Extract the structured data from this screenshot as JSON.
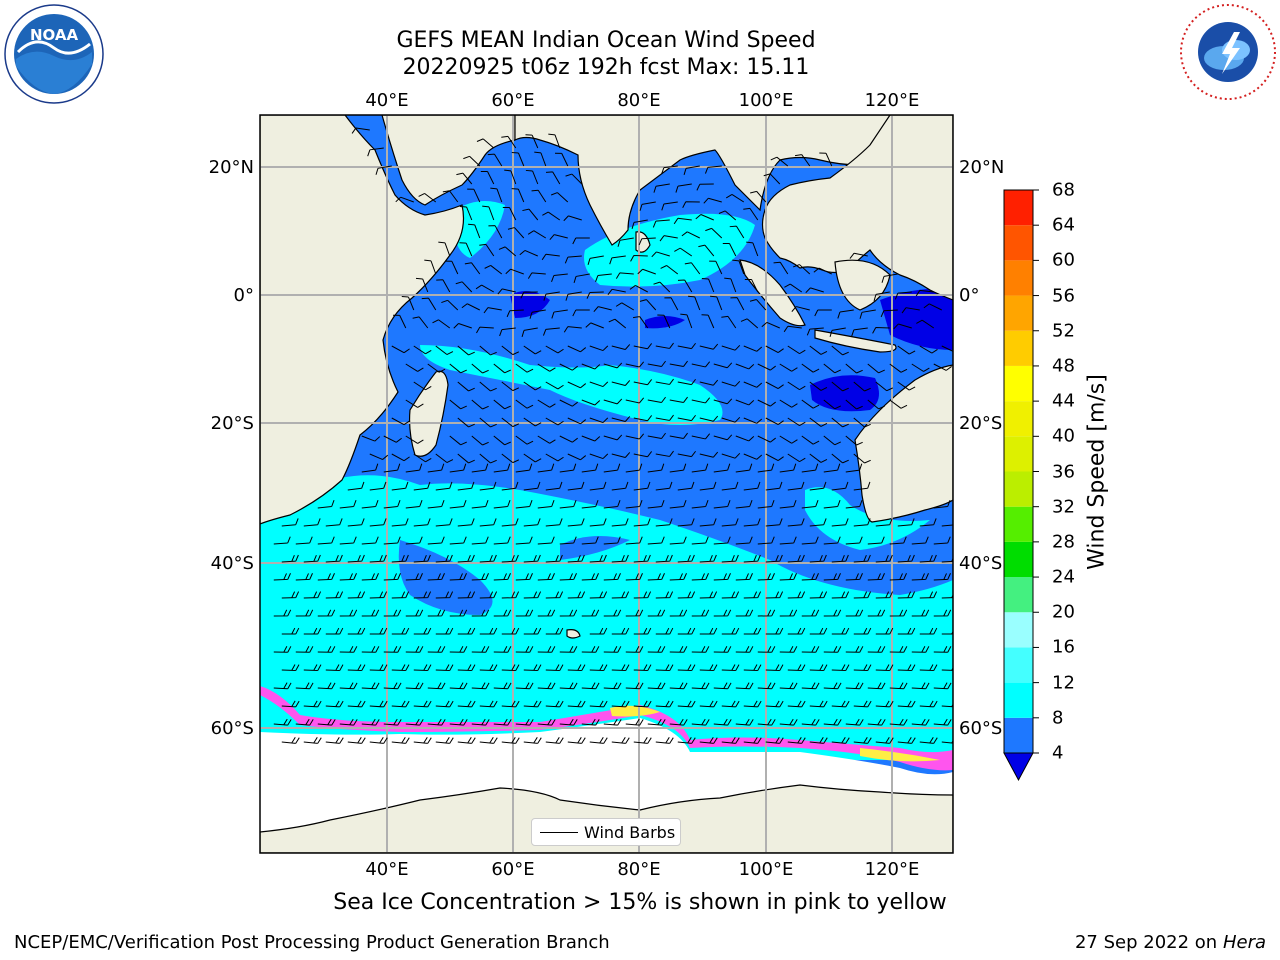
{
  "title_line1": "GEFS MEAN Indian Ocean Wind Speed",
  "title_line2": "20220925 t06z 192h fcst   Max: 15.11",
  "caption": "Sea Ice Concentration > 15% is shown in pink to yellow",
  "footer_left": "NCEP/EMC/Verification Post Processing Product Generation Branch",
  "footer_date": "27 Sep 2022 on",
  "footer_machine": "Hera",
  "legend_label": "Wind Barbs",
  "logos": {
    "left": {
      "name": "noaa-logo",
      "text": "NOAA"
    },
    "right": {
      "name": "nws-logo"
    }
  },
  "map": {
    "lon_ticks": [
      "40°E",
      "60°E",
      "80°E",
      "100°E",
      "120°E"
    ],
    "lat_ticks_left": [
      "20°N",
      "0°",
      "20°S",
      "40°S",
      "60°S"
    ],
    "lat_ticks_right": [
      "20°N",
      "0°",
      "20°S",
      "40°S",
      "60°S"
    ]
  },
  "colors": {
    "land": "#efefe0",
    "ice_free": "#ffffff",
    "ocean_low": "#1e78ff",
    "ocean_mid": "#00ffff",
    "ocean_calm": "#0000e6",
    "ice_pink": "#ff55ee",
    "ice_yellow": "#ffee44"
  },
  "colorbar": {
    "label": "Wind Speed [m/s]",
    "ticks": [
      "68",
      "64",
      "60",
      "56",
      "52",
      "48",
      "44",
      "40",
      "36",
      "32",
      "28",
      "24",
      "20",
      "16",
      "12",
      "8",
      "4"
    ],
    "bins": [
      {
        "min": 4,
        "max": 8,
        "color": "#1e78ff"
      },
      {
        "min": 8,
        "max": 12,
        "color": "#00ffff"
      },
      {
        "min": 12,
        "max": 16,
        "color": "#44ffff"
      },
      {
        "min": 16,
        "max": 20,
        "color": "#9affff"
      },
      {
        "min": 20,
        "max": 24,
        "color": "#44f080"
      },
      {
        "min": 24,
        "max": 28,
        "color": "#00dd00"
      },
      {
        "min": 28,
        "max": 32,
        "color": "#55ee00"
      },
      {
        "min": 32,
        "max": 36,
        "color": "#bbee00"
      },
      {
        "min": 36,
        "max": 40,
        "color": "#ddf000"
      },
      {
        "min": 40,
        "max": 44,
        "color": "#f0f000"
      },
      {
        "min": 44,
        "max": 48,
        "color": "#ffff00"
      },
      {
        "min": 48,
        "max": 52,
        "color": "#ffcc00"
      },
      {
        "min": 52,
        "max": 56,
        "color": "#ffa500"
      },
      {
        "min": 56,
        "max": 60,
        "color": "#ff8000"
      },
      {
        "min": 60,
        "max": 64,
        "color": "#ff5500"
      },
      {
        "min": 64,
        "max": 68,
        "color": "#ff2000"
      }
    ],
    "under_color": "#0000e6"
  }
}
